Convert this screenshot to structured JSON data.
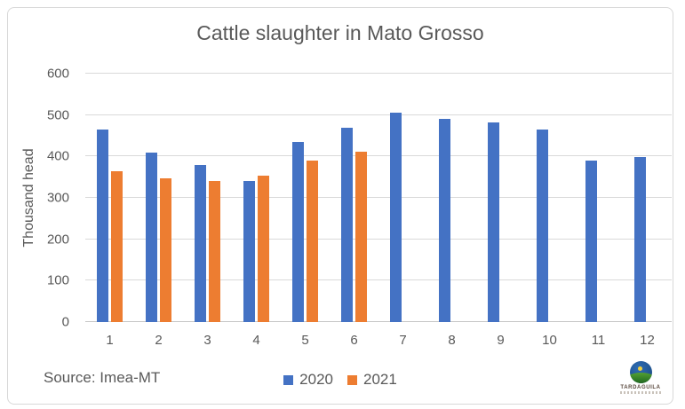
{
  "window": {
    "background": "#ffffff",
    "border_color": "#d8d8d8"
  },
  "title": "Cattle slaughter in Mato Grosso",
  "footer": {
    "source_label": "Source: Imea-MT",
    "logo_text": "TARDAGUILA"
  },
  "colors": {
    "series_2020": "#4472C4",
    "series_2021": "#ED7D31",
    "grid": "#D9D9D9",
    "axis_text": "#595959",
    "title_text": "#595959"
  },
  "chart_data": {
    "type": "bar",
    "title": "Cattle slaughter in Mato Grosso",
    "xlabel": "",
    "ylabel": "Thousand head",
    "categories": [
      "1",
      "2",
      "3",
      "4",
      "5",
      "6",
      "7",
      "8",
      "9",
      "10",
      "11",
      "12"
    ],
    "series": [
      {
        "name": "2020",
        "color": "#4472C4",
        "values": [
          465,
          410,
          380,
          340,
          435,
          470,
          505,
          490,
          482,
          465,
          391,
          398
        ]
      },
      {
        "name": "2021",
        "color": "#ED7D31",
        "values": [
          365,
          347,
          340,
          354,
          391,
          411,
          null,
          null,
          null,
          null,
          null,
          null
        ]
      }
    ],
    "ylim": [
      0,
      600
    ],
    "yticks": [
      0,
      100,
      200,
      300,
      400,
      500,
      600
    ],
    "grid": true,
    "legend_position": "bottom"
  }
}
